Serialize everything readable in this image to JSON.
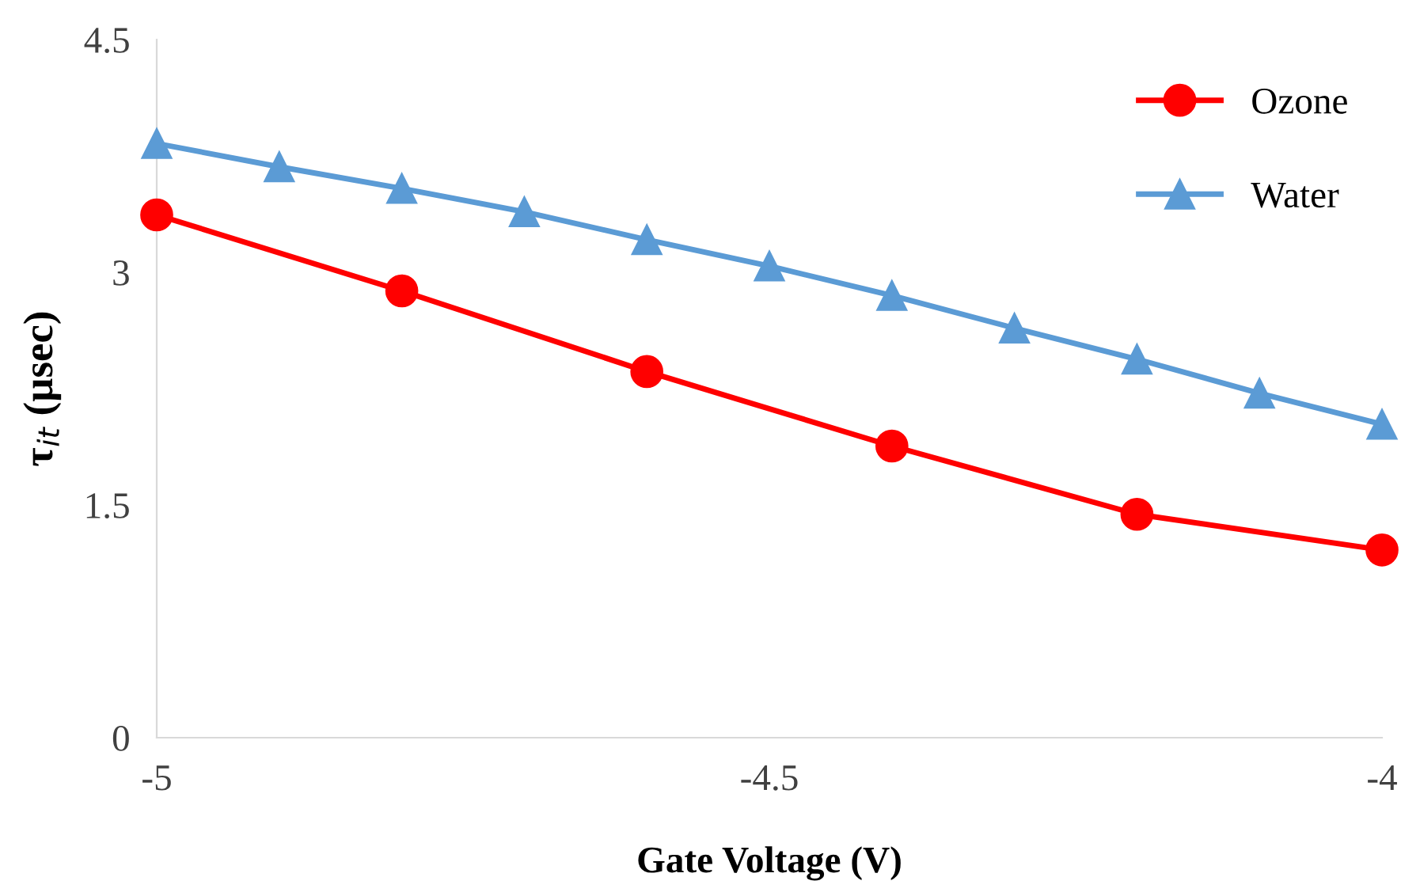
{
  "chart_data": {
    "type": "line",
    "xlabel": "Gate Voltage (V)",
    "ylabel": "τ$_{it}$ (µsec)",
    "xlim": [
      -5,
      -4
    ],
    "ylim": [
      0,
      4.5
    ],
    "xticks": [
      {
        "value": -5,
        "label": "-5"
      },
      {
        "value": -4.5,
        "label": "-4.5"
      },
      {
        "value": -4,
        "label": "-4"
      }
    ],
    "yticks": [
      0,
      1.5,
      3,
      4.5
    ],
    "grid": false,
    "legend": "top right",
    "series": [
      {
        "name": "Ozone",
        "color": "#ff0000",
        "marker": "circle",
        "x": [
          -5,
          -4.8,
          -4.6,
          -4.4,
          -4.2,
          -4
        ],
        "values": [
          3.37,
          2.88,
          2.36,
          1.88,
          1.44,
          1.21
        ]
      },
      {
        "name": "Water",
        "color": "#5b9bd5",
        "marker": "triangle",
        "x": [
          -5,
          -4.9,
          -4.8,
          -4.7,
          -4.6,
          -4.5,
          -4.4,
          -4.3,
          -4.2,
          -4.1,
          -4
        ],
        "values": [
          3.83,
          3.68,
          3.54,
          3.39,
          3.21,
          3.04,
          2.85,
          2.64,
          2.44,
          2.22,
          2.02
        ]
      }
    ]
  }
}
